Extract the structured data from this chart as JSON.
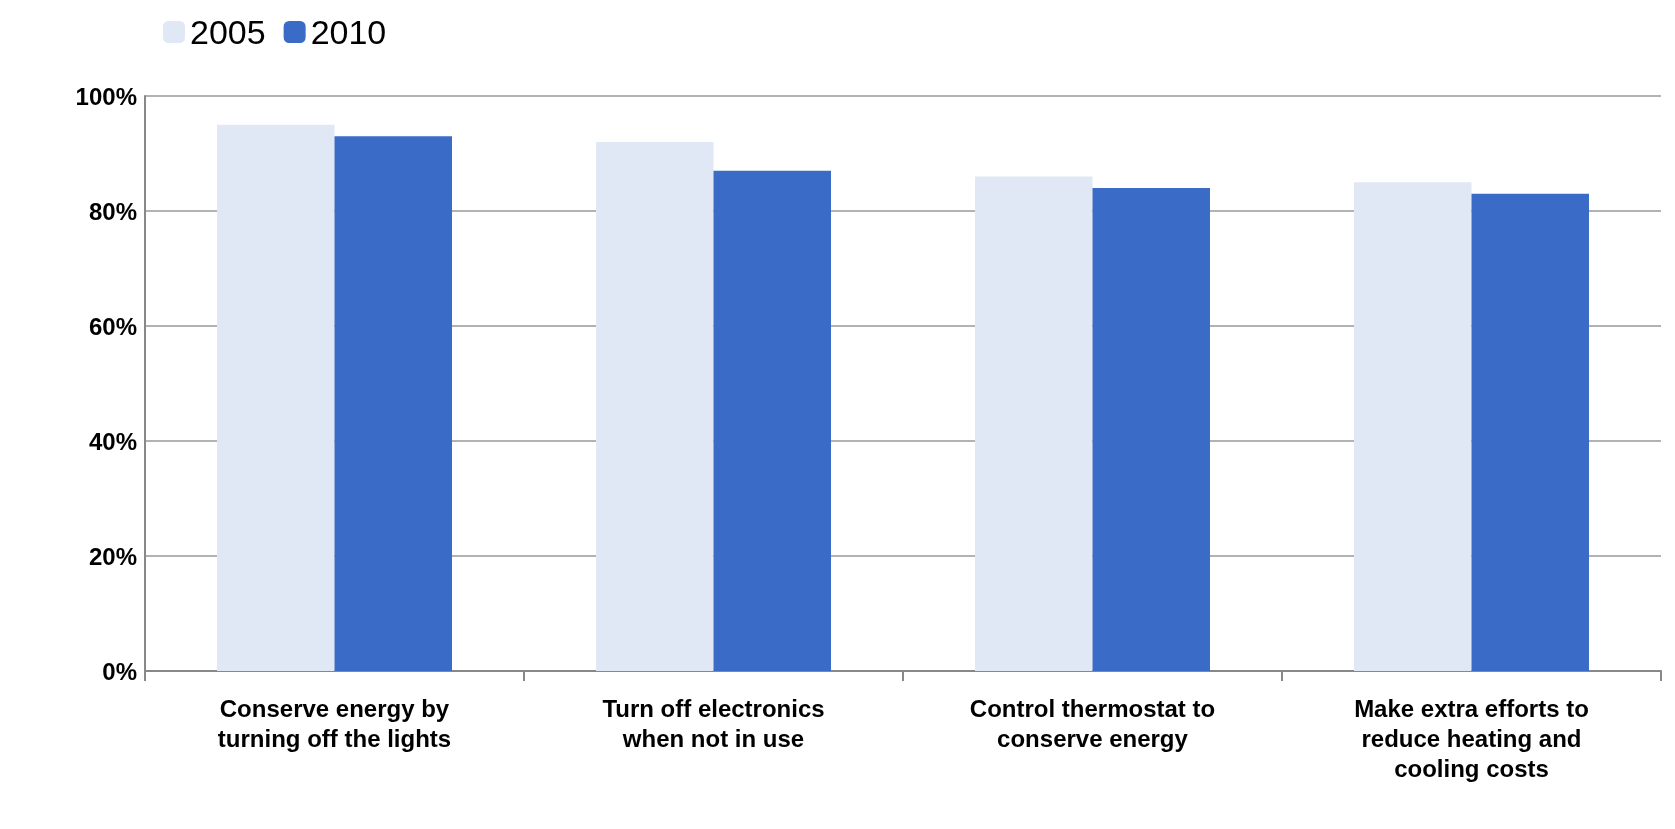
{
  "chart_data": {
    "type": "bar",
    "categories": [
      "Conserve energy by\nturning off the lights",
      "Turn off electronics\nwhen not in use",
      "Control thermostat to\nconserve energy",
      "Make extra efforts to\nreduce heating and\ncooling costs"
    ],
    "series": [
      {
        "name": "2005",
        "color": "#e0e7f5",
        "values": [
          95,
          92,
          86,
          85
        ]
      },
      {
        "name": "2010",
        "color": "#3a6bc6",
        "values": [
          93,
          87,
          84,
          83
        ]
      }
    ],
    "ylim": [
      0,
      100
    ],
    "yticks": [
      {
        "value": 0,
        "label": "0%"
      },
      {
        "value": 20,
        "label": "20%"
      },
      {
        "value": 40,
        "label": "40%"
      },
      {
        "value": 60,
        "label": "60%"
      },
      {
        "value": 80,
        "label": "80%"
      },
      {
        "value": 100,
        "label": "100%"
      }
    ],
    "grid": "y",
    "legend": "top left"
  }
}
